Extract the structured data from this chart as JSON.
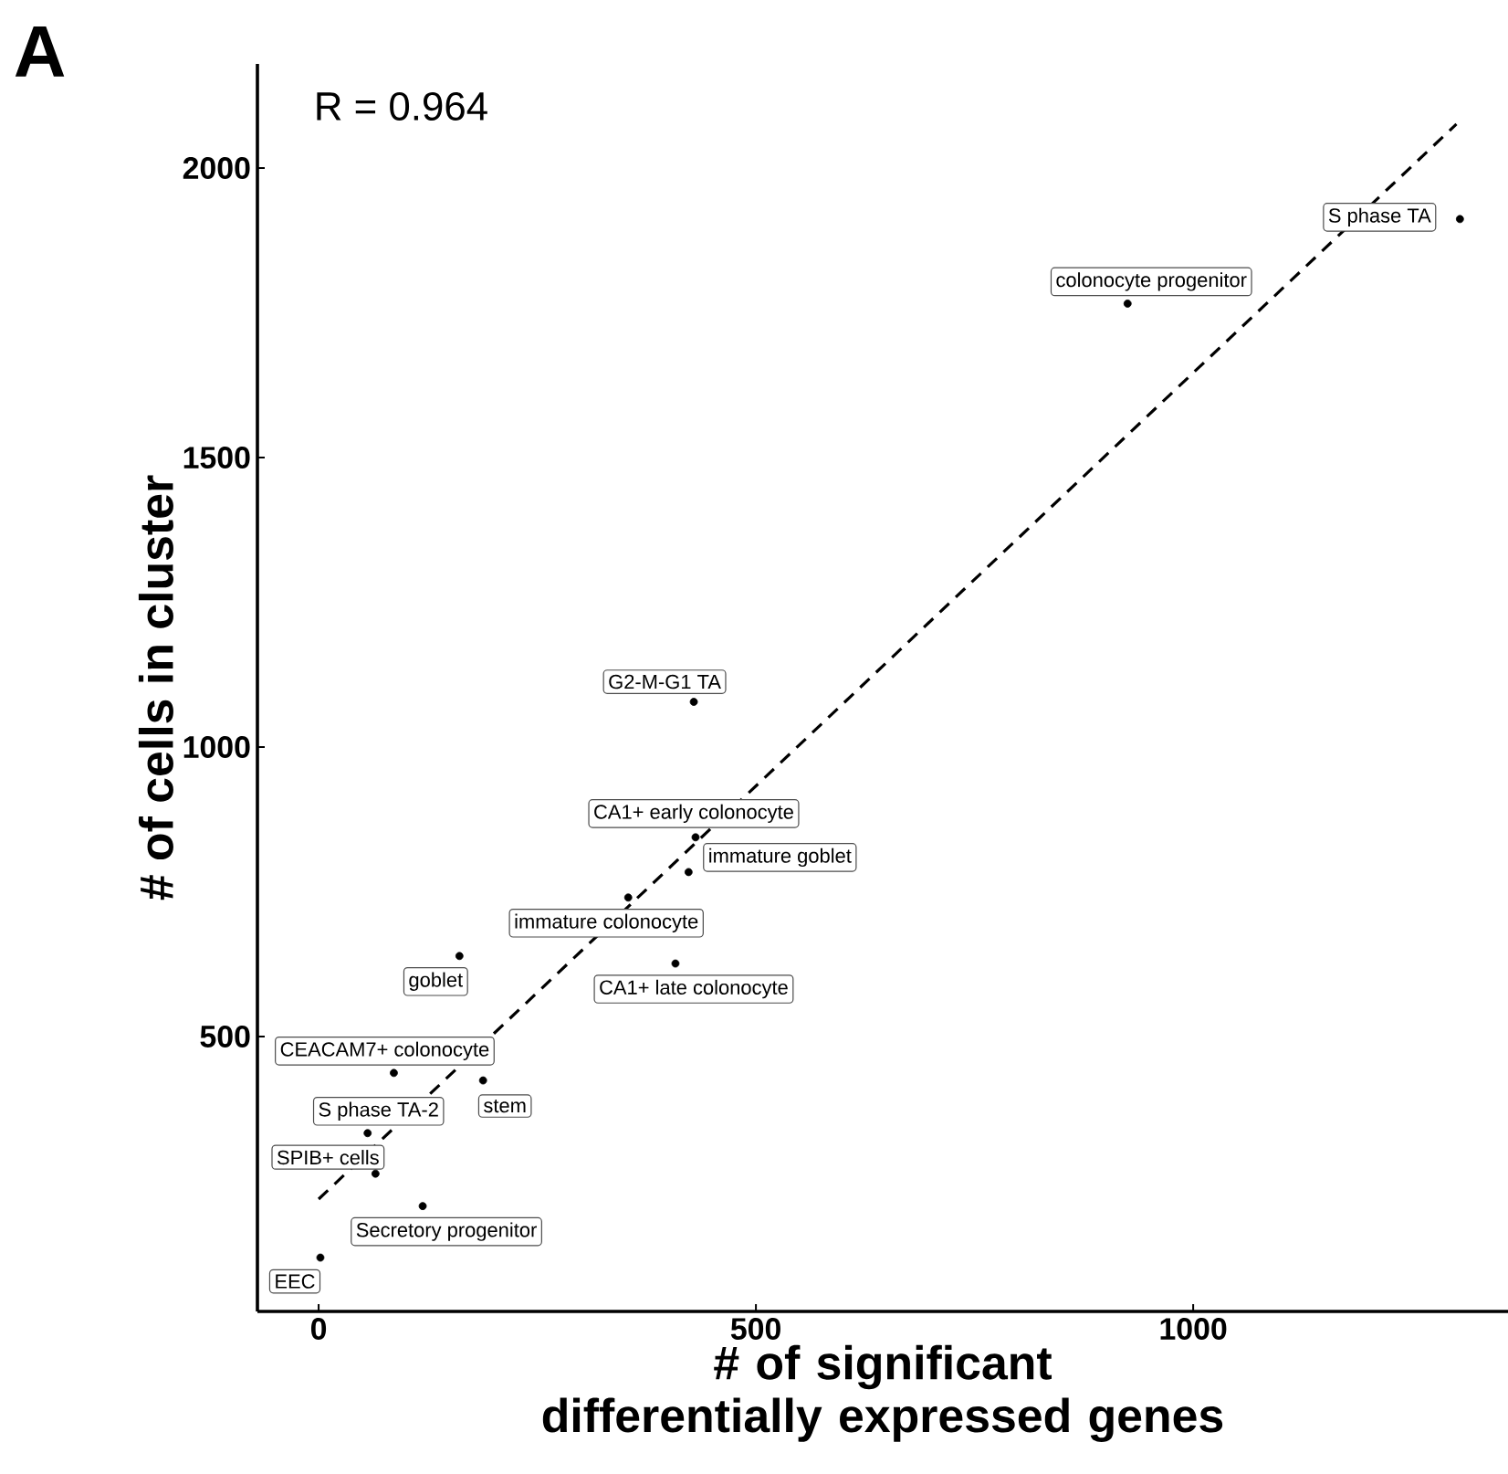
{
  "chart_data": {
    "type": "scatter",
    "title": "A",
    "xlabel": "# of significant differentially expressed genes",
    "ylabel": "# of cells in cluster",
    "xlim": [
      -70,
      1360
    ],
    "ylim": [
      25,
      2180
    ],
    "xticks": [
      0,
      500,
      1000
    ],
    "yticks": [
      500,
      1000,
      1500,
      2000
    ],
    "grid": false,
    "marker": "circle",
    "series": [
      {
        "color": "#000000",
        "x": [
          1305,
          925,
          429,
          431,
          423,
          354,
          161,
          408,
          86,
          188,
          56,
          65,
          119,
          2
        ],
        "values": [
          1912,
          1766,
          1078,
          844,
          784,
          740,
          639,
          626,
          437,
          424,
          333,
          263,
          207,
          118
        ]
      },
      {
        "type": "line",
        "color": "#000000",
        "line_style": "dashed",
        "marker": "none",
        "x": [
          0,
          1301
        ],
        "values": [
          219,
          2076
        ]
      }
    ],
    "annotations": [
      "R = 0.964",
      {
        "text": "S phase TA",
        "x": 1305,
        "y": 1912
      },
      {
        "text": "colonocyte progenitor",
        "x": 925,
        "y": 1766
      },
      {
        "text": "G2-M-G1 TA",
        "x": 429,
        "y": 1078
      },
      {
        "text": "CA1+ early colonocyte",
        "x": 431,
        "y": 844
      },
      {
        "text": "immature goblet",
        "x": 423,
        "y": 784
      },
      {
        "text": "immature colonocyte",
        "x": 354,
        "y": 740
      },
      {
        "text": "goblet",
        "x": 161,
        "y": 639
      },
      {
        "text": "CA1+ late colonocyte",
        "x": 408,
        "y": 626
      },
      {
        "text": "CEACAM7+ colonocyte",
        "x": 86,
        "y": 437
      },
      {
        "text": "stem",
        "x": 188,
        "y": 424
      },
      {
        "text": "S phase TA-2",
        "x": 56,
        "y": 333
      },
      {
        "text": "SPIB+ cells",
        "x": 65,
        "y": 263
      },
      {
        "text": "Secretory progenitor",
        "x": 119,
        "y": 207
      },
      {
        "text": "EEC",
        "x": 2,
        "y": 118
      }
    ]
  }
}
